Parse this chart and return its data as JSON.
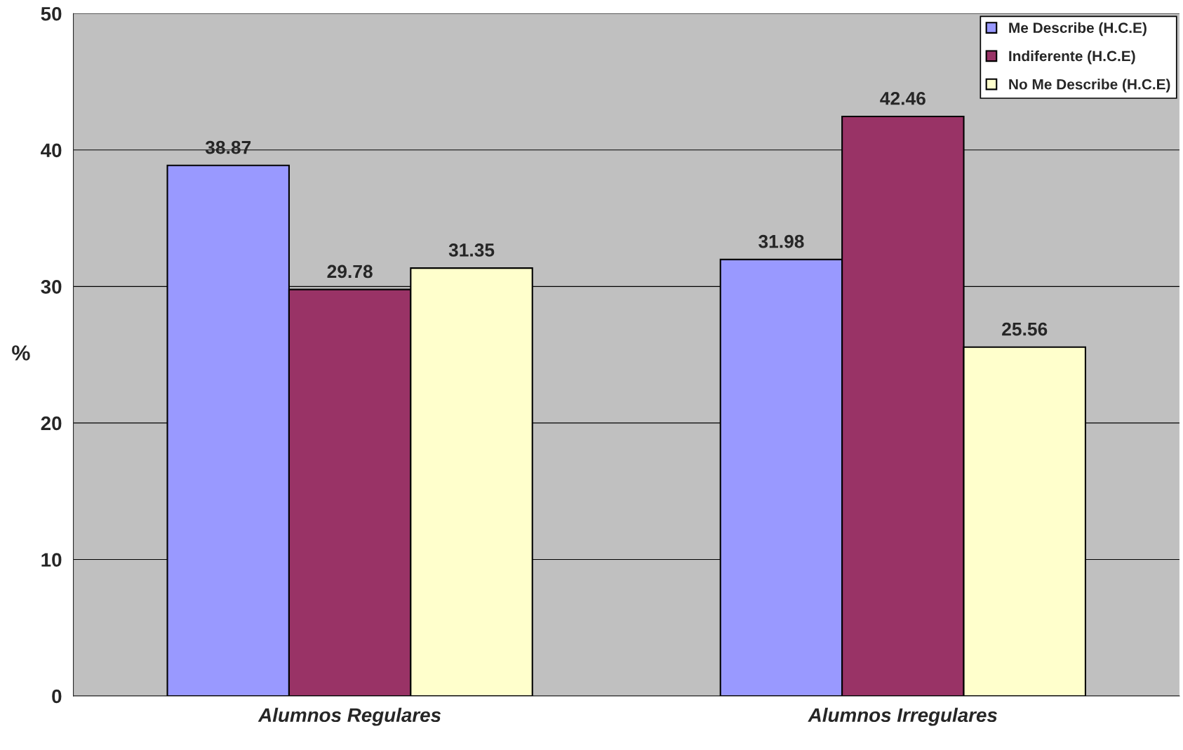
{
  "chart_data": {
    "type": "bar",
    "ylabel": "%",
    "categories": [
      "Alumnos Regulares",
      "Alumnos Irregulares"
    ],
    "series": [
      {
        "name": "Me Describe (H.C.E)",
        "color": "#9999ff",
        "values": [
          38.87,
          31.98
        ]
      },
      {
        "name": "Indiferente (H.C.E)",
        "color": "#993366",
        "values": [
          29.78,
          42.46
        ]
      },
      {
        "name": "No Me Describe (H.C.E)",
        "color": "#ffffcc",
        "values": [
          31.35,
          25.56
        ]
      }
    ],
    "ylim": [
      0,
      50
    ],
    "yticks": [
      0,
      10,
      20,
      30,
      40,
      50
    ],
    "grid": "y",
    "legend": "top right",
    "data_labels": true
  }
}
